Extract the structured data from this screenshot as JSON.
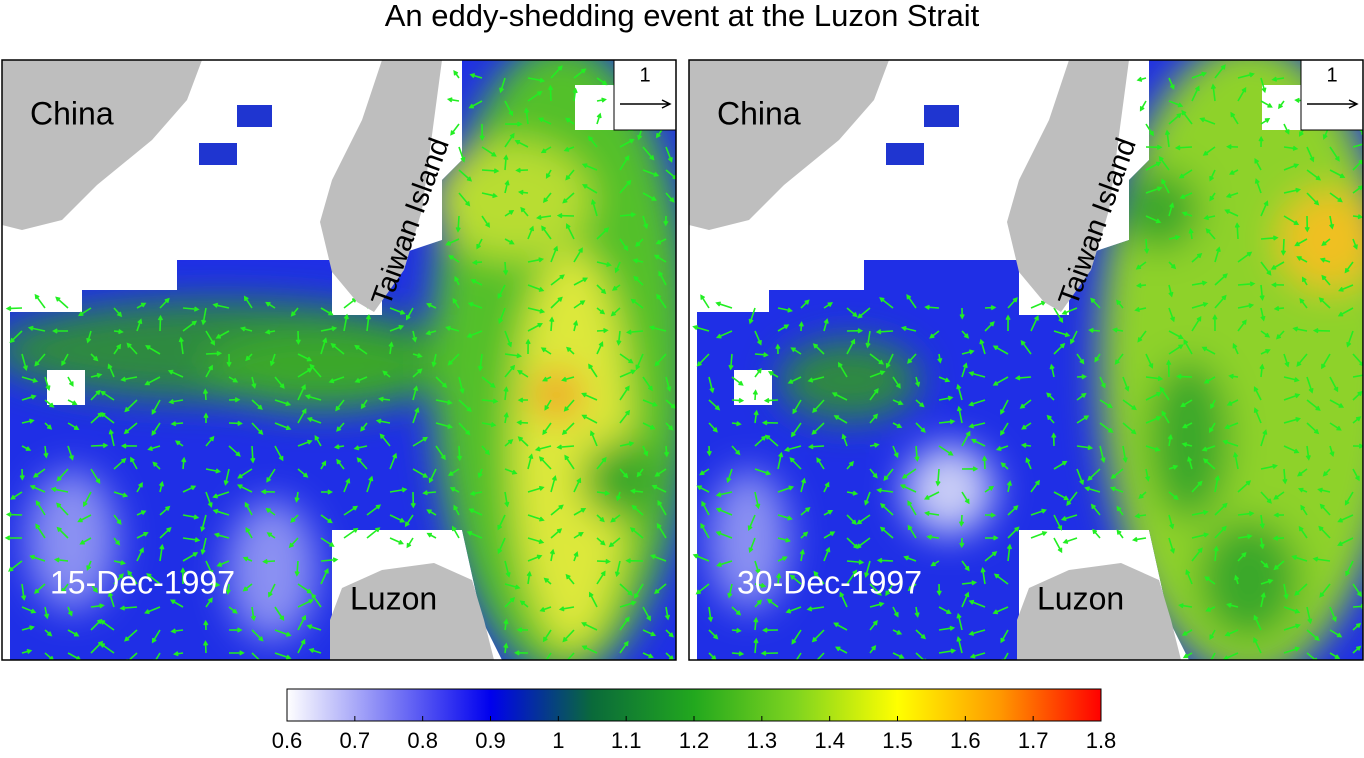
{
  "title": "An eddy-shedding event at the Luzon Strait",
  "panels": [
    {
      "date": "15-Dec-1997",
      "labels": [
        "China",
        "Taiwan Island",
        "Luzon"
      ],
      "reference_vector": 1
    },
    {
      "date": "30-Dec-1997",
      "labels": [
        "China",
        "Taiwan Island",
        "Luzon"
      ],
      "reference_vector": 1
    }
  ],
  "colorbar": {
    "lim": [
      0.6,
      1.8
    ],
    "ticks": [
      0.6,
      0.7,
      0.8,
      0.9,
      1,
      1.1,
      1.2,
      1.3,
      1.4,
      1.5,
      1.6,
      1.7,
      1.8
    ],
    "colors": [
      "#ffffff",
      "#7f7ff5",
      "#0000ee",
      "#0a6a3a",
      "#22a81e",
      "#7fd41f",
      "#ffff00",
      "#ff9900",
      "#ff0000"
    ]
  }
}
